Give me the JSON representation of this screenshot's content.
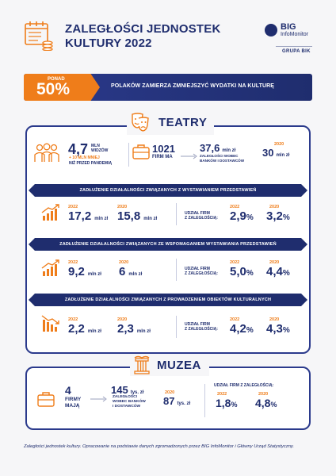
{
  "header": {
    "title_line1": "ZALEGŁOŚCI JEDNOSTEK",
    "title_line2": "KULTURY 2022",
    "icon": "ledger-coins-icon"
  },
  "logo": {
    "big": "BIG",
    "infomonitor": "InfoMonitor",
    "grupa": "GRUPA BIK"
  },
  "banner": {
    "ponad": "PONAD",
    "percent": "50%",
    "text": "POLAKÓW ZAMIERZA ZMNIEJSZYĆ WYDATKI NA KULTURĘ"
  },
  "teatry": {
    "title": "TEATRY",
    "icon": "theatre-masks-icon",
    "viewers": {
      "value": "4,7",
      "unit1": "MLN",
      "unit2": "WIDZÓW",
      "delta": "+ 10 MLN MNIEJ",
      "delta_note": "NIŻ PRZED PANDEMIĄ"
    },
    "firms": {
      "value": "1021",
      "label": "FIRM MA"
    },
    "debt": {
      "value": "37,6",
      "unit": "mln zł",
      "label1": "ZALEGŁOŚCI WOBEC",
      "label2": "BANKÓW I DOSTAWCÓW"
    },
    "debt2020": {
      "year": "2020",
      "value": "30",
      "unit": "mln zł"
    },
    "rows": [
      {
        "ribbon": "ZADŁUŻENIE DZIAŁALNOŚCI ZWIĄZANYCH Z WYSTAWIANIEM PRZEDSTAWIEŃ",
        "y2022": "2022",
        "v2022": "17,2",
        "y2020": "2020",
        "v2020": "15,8",
        "unit": "mln zł",
        "share_label1": "UDZIAŁ FIRM",
        "share_label2": "Z ZALEGŁOŚCIĄ:",
        "s_y2022": "2022",
        "s_v2022": "2,9",
        "s_y2020": "2020",
        "s_v2020": "3,2",
        "pct": "%",
        "trend": "up"
      },
      {
        "ribbon": "ZADŁUŻENIE DZIAŁALNOŚCI ZWIĄZANYCH ZE WSPOMAGANIEM WYSTAWIANIA PRZEDSTAWIEŃ",
        "y2022": "2022",
        "v2022": "9,2",
        "y2020": "2020",
        "v2020": "6",
        "unit": "mln zł",
        "share_label1": "UDZIAŁ FIRM",
        "share_label2": "Z ZALEGŁOŚCIĄ:",
        "s_y2022": "2022",
        "s_v2022": "5,0",
        "s_y2020": "2020",
        "s_v2020": "4,4",
        "pct": "%",
        "trend": "up"
      },
      {
        "ribbon": "ZADŁUŻENIE DZIAŁALNOŚCI ZWIĄZANYCH Z PROWADZENIEM OBIEKTÓW KULTURALNYCH",
        "y2022": "2022",
        "v2022": "2,2",
        "y2020": "2020",
        "v2020": "2,3",
        "unit": "mln zł",
        "share_label1": "UDZIAŁ FIRM",
        "share_label2": "Z ZALEGŁOŚCIĄ:",
        "s_y2022": "2022",
        "s_v2022": "4,2",
        "s_y2020": "2020",
        "s_v2020": "4,3",
        "pct": "%",
        "trend": "down"
      }
    ]
  },
  "muzea": {
    "title": "MUZEA",
    "icon": "museum-column-icon",
    "firms": {
      "value": "4",
      "label1": "FIRMY",
      "label2": "MAJĄ"
    },
    "debt": {
      "value": "145",
      "unit": "tys. zł",
      "label1": "ZALEGŁOŚCI",
      "label2": "WOBEC BANKÓW",
      "label3": "I DOSTAWCÓW"
    },
    "debt2020": {
      "year": "2020",
      "value": "87",
      "unit": "tys. zł"
    },
    "share": {
      "label": "UDZIAŁ FIRM Z ZALEGŁOŚCIĄ:",
      "y2022": "2022",
      "v2022": "1,8",
      "y2020": "2020",
      "v2020": "4,8",
      "pct": "%"
    }
  },
  "footer": "Zaległości jednostek kultury. Opracowanie na podstawie danych zgromadzonych przez BIG InfoMonitor i Główny Urząd Statystyczny."
}
